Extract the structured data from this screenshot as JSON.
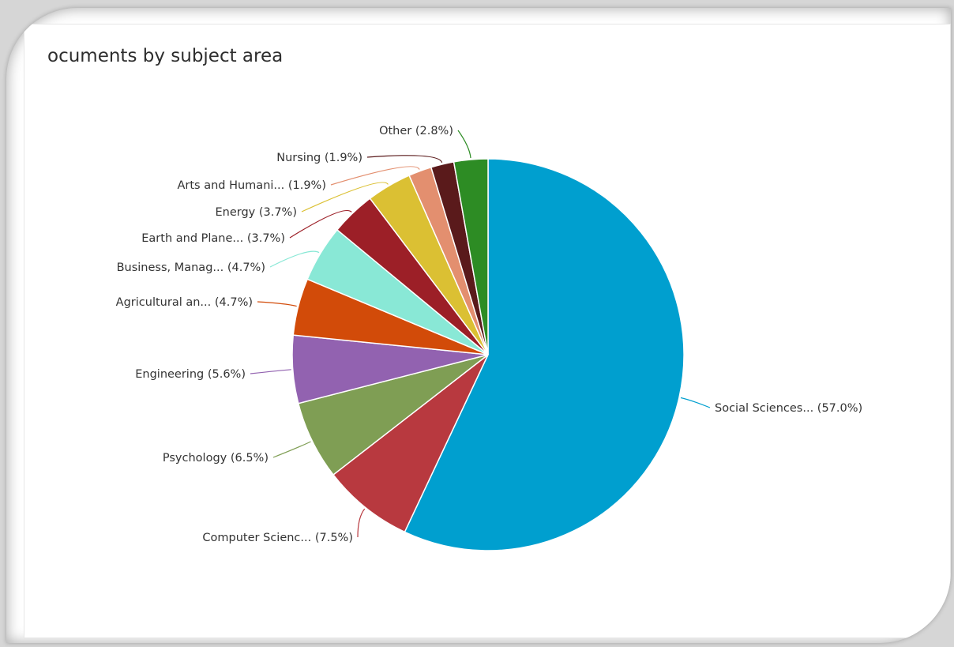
{
  "chart_data": {
    "type": "pie",
    "title": "ocuments by subject area",
    "slices": [
      {
        "label": "Social Sciences... (57.0%)",
        "value": 57.0,
        "color": "#009fcf"
      },
      {
        "label": "Computer Scienc... (7.5%)",
        "value": 7.5,
        "color": "#b8393f"
      },
      {
        "label": "Psychology (6.5%)",
        "value": 6.5,
        "color": "#7f9e54"
      },
      {
        "label": "Engineering (5.6%)",
        "value": 5.6,
        "color": "#9262b0"
      },
      {
        "label": "Agricultural an... (4.7%)",
        "value": 4.7,
        "color": "#d24b09"
      },
      {
        "label": "Business, Manag... (4.7%)",
        "value": 4.7,
        "color": "#89e8d6"
      },
      {
        "label": "Earth and Plane... (3.7%)",
        "value": 3.7,
        "color": "#9c1f27"
      },
      {
        "label": "Energy (3.7%)",
        "value": 3.7,
        "color": "#dbc033"
      },
      {
        "label": "Arts and Humani... (1.9%)",
        "value": 1.9,
        "color": "#e38f6f"
      },
      {
        "label": "Nursing (1.9%)",
        "value": 1.9,
        "color": "#5a1a1b"
      },
      {
        "label": "Other (2.8%)",
        "value": 2.8,
        "color": "#2d8c24"
      }
    ]
  }
}
